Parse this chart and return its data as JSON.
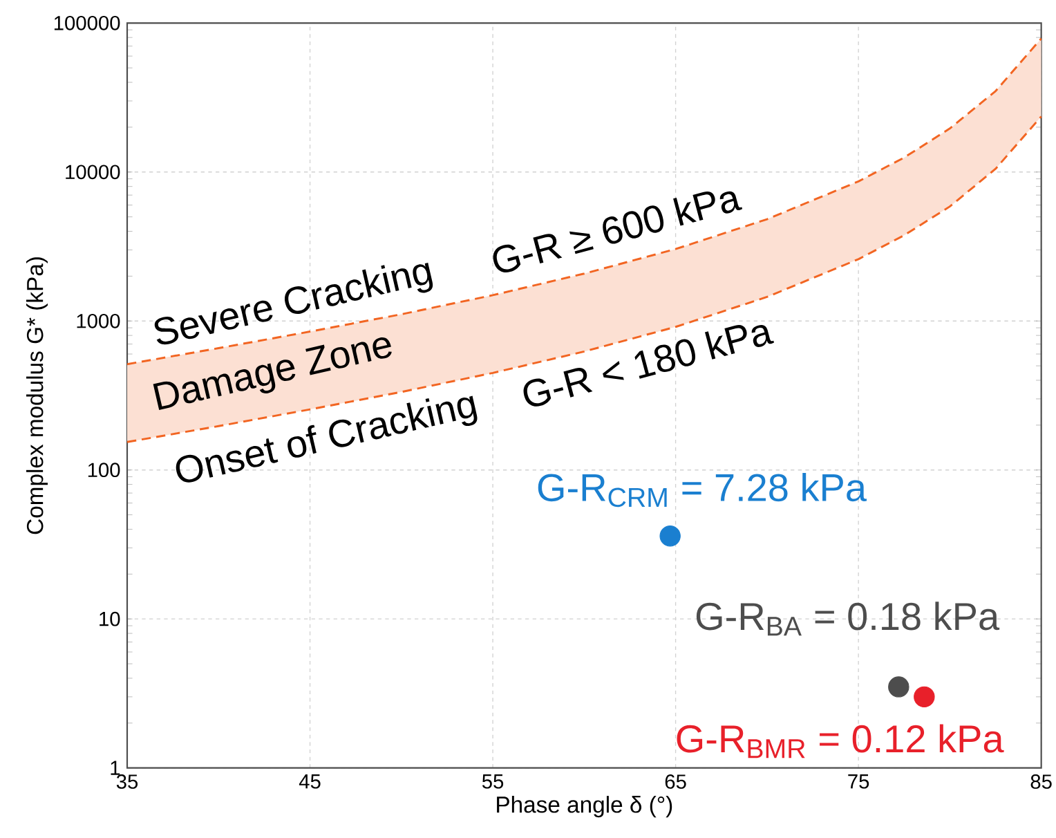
{
  "chart_data": {
    "type": "line",
    "xlabel": "Phase angle δ (°)",
    "ylabel": "Complex modulus G* (kPa)",
    "xlim": [
      35,
      85
    ],
    "ylim": [
      1,
      100000
    ],
    "xticks": [
      35,
      45,
      55,
      65,
      75,
      85
    ],
    "yticks": [
      1,
      10,
      100,
      1000,
      10000,
      100000
    ],
    "log": "y",
    "grid": true,
    "line_style": "dashed",
    "series": [
      {
        "color": "#f26522",
        "marker": "none",
        "x": [
          35,
          40,
          45,
          50,
          55,
          60,
          65,
          70,
          75,
          77.5,
          80,
          82.5,
          85
        ],
        "values": [
          513,
          657,
          849,
          1110,
          1490,
          2080,
          3040,
          4820,
          8650,
          12500,
          19600,
          34900,
          78700
        ],
        "lower": [
          154,
          197,
          255,
          334,
          448,
          624,
          913,
          1450,
          2600,
          3760,
          5870,
          10500,
          23600
        ],
        "upper": [
          513,
          657,
          849,
          1110,
          1490,
          2080,
          3040,
          4820,
          8650,
          12500,
          19600,
          34900,
          78700
        ]
      },
      {
        "color": "#f26522",
        "marker": "none",
        "x": [
          35,
          40,
          45,
          50,
          55,
          60,
          65,
          70,
          75,
          77.5,
          80,
          82.5,
          85
        ],
        "values": [
          154,
          197,
          255,
          334,
          448,
          624,
          913,
          1450,
          2600,
          3760,
          5870,
          10500,
          23600
        ]
      },
      {
        "type": "scatter",
        "marker": "circle",
        "name": "G-R$_{CRM}$ = 7.28 kPa",
        "color": "#1a7fd0",
        "x": [
          64.7
        ],
        "values": [
          36
        ]
      },
      {
        "type": "scatter",
        "marker": "circle",
        "name": "G-R$_{BA}$ = 0.18 kPa",
        "color": "#4d4d4d",
        "x": [
          77.2
        ],
        "values": [
          3.5
        ]
      },
      {
        "type": "scatter",
        "marker": "circle",
        "name": "G-R$_{BMR}$ = 0.12 kPa",
        "color": "#e8202a",
        "x": [
          78.6
        ],
        "values": [
          3.0
        ]
      }
    ],
    "annotations": [
      "Severe Cracking",
      "G-R ≥ 600 kPa",
      "Damage Zone",
      "Onset of Cracking",
      "G-R < 180 kPa"
    ]
  }
}
